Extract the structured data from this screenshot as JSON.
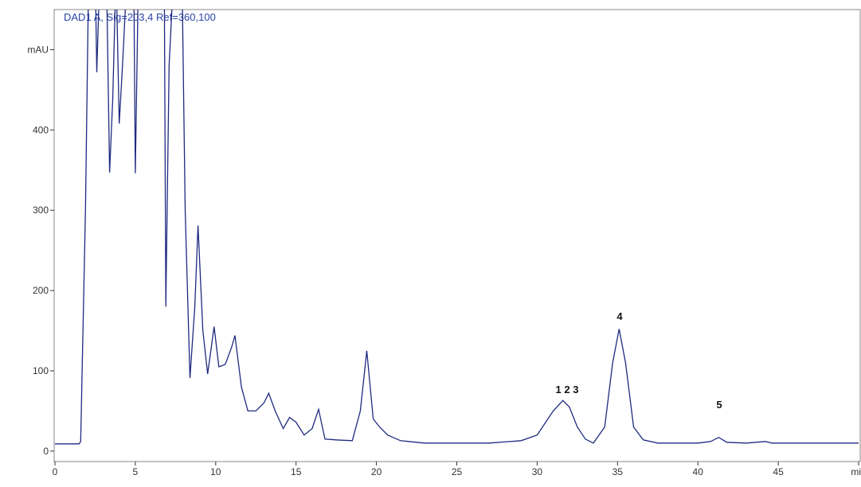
{
  "chart_data": {
    "type": "line",
    "title": "DAD1 A, Sig=203,4 Ref=360,100",
    "x": [
      0,
      1.5,
      1.6,
      1.9,
      2.1,
      2.5,
      2.6,
      2.8,
      3.2,
      3.4,
      3.6,
      3.8,
      4.0,
      4.2,
      4.5,
      4.9,
      5.0,
      5.2,
      6.8,
      6.9,
      7.1,
      7.4,
      7.9,
      8.1,
      8.4,
      8.7,
      8.9,
      9.2,
      9.5,
      9.9,
      10.2,
      10.6,
      11.0,
      11.2,
      11.6,
      12.0,
      12.5,
      13.0,
      13.3,
      13.7,
      14.2,
      14.6,
      15.0,
      15.5,
      16.0,
      16.4,
      16.8,
      17.5,
      18.5,
      19.0,
      19.4,
      19.8,
      20.2,
      20.7,
      21.5,
      23,
      25,
      27,
      29,
      30,
      30.6,
      31,
      31.6,
      32.0,
      32.5,
      33.0,
      33.5,
      34.2,
      34.7,
      35.1,
      35.5,
      36.0,
      36.6,
      37.5,
      40,
      40.8,
      41.3,
      41.8,
      43,
      44.2,
      44.6,
      50
    ],
    "values": [
      9,
      9,
      12,
      300,
      600,
      600,
      472,
      600,
      600,
      347,
      440,
      600,
      408,
      480,
      600,
      600,
      346,
      600,
      600,
      180,
      480,
      600,
      600,
      300,
      91,
      180,
      281,
      150,
      96,
      155,
      105,
      108,
      130,
      144,
      80,
      50,
      50,
      60,
      72,
      50,
      28,
      42,
      36,
      20,
      28,
      52,
      15,
      14,
      13,
      50,
      125,
      40,
      30,
      20,
      13,
      10,
      10,
      10,
      13,
      20,
      38,
      50,
      63,
      55,
      30,
      15,
      10,
      30,
      110,
      152,
      110,
      30,
      14,
      10,
      10,
      12,
      17,
      11,
      10,
      12,
      10,
      10
    ],
    "color": "#1f2a80",
    "xlim": [
      0,
      50
    ],
    "ylim": [
      -13,
      550
    ],
    "xticks": [
      0,
      5,
      10,
      15,
      20,
      25,
      30,
      35,
      40,
      45,
      {
        "value": 50,
        "label": "min"
      }
    ],
    "yticks": [
      0,
      100,
      200,
      300,
      400,
      {
        "value": 500,
        "label": "mAU"
      }
    ],
    "annotations": [
      "1 2 3",
      "4",
      "5"
    ]
  }
}
